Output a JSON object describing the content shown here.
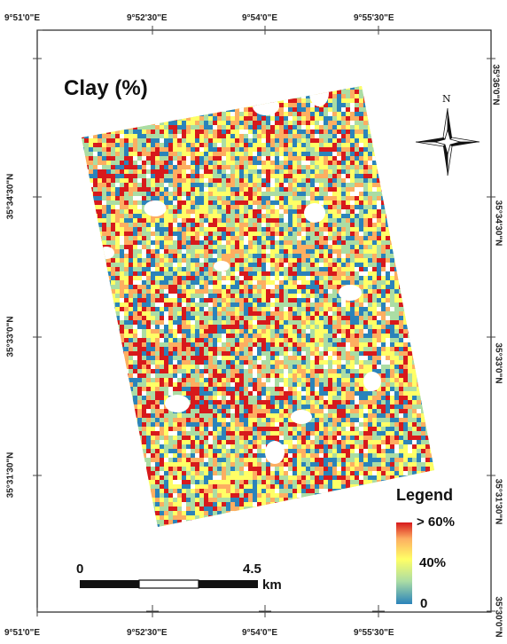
{
  "map": {
    "title": "Clay (%)",
    "north_label": "N",
    "top_coords": [
      "9°51'0\"E",
      "9°52'30\"E",
      "9°54'0\"E",
      "9°55'30\"E"
    ],
    "bottom_coords": [
      "9°51'0\"E",
      "9°52'30\"E",
      "9°54'0\"E",
      "9°55'30\"E"
    ],
    "left_coords": [
      "35°34'30\"N",
      "35°33'0\"N",
      "35°31'30\"N"
    ],
    "right_coords": [
      "35°36'0\"N",
      "35°34'30\"N",
      "35°33'0\"N",
      "35°31'30\"N",
      "35°30'0\"N"
    ],
    "legend": {
      "title": "Legend",
      "max_label": "> 60%",
      "mid_label": "40%",
      "min_label": "0",
      "colors": [
        "#2b83ba",
        "#abdda4",
        "#ffff66",
        "#fdae61",
        "#d7191c"
      ]
    },
    "scale_bar": {
      "start_label": "0",
      "end_label": "4.5",
      "unit": "km"
    }
  }
}
